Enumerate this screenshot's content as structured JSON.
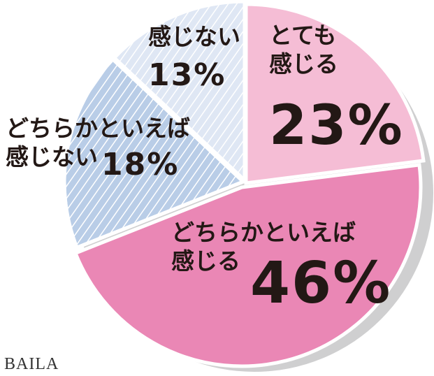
{
  "chart_data": {
    "type": "pie",
    "categories": [
      "とても感じる",
      "どちらかといえば感じる",
      "どちらかといえば感じない",
      "感じない"
    ],
    "values": [
      23,
      46,
      18,
      13
    ],
    "value_labels": [
      "23%",
      "46%",
      "18%",
      "13%"
    ],
    "colors": [
      "#f5bdd5",
      "#ea87b5",
      "#b9cde7",
      "#dfe7f4"
    ],
    "hatch": [
      false,
      false,
      true,
      true
    ],
    "watermark": "BAILA"
  }
}
